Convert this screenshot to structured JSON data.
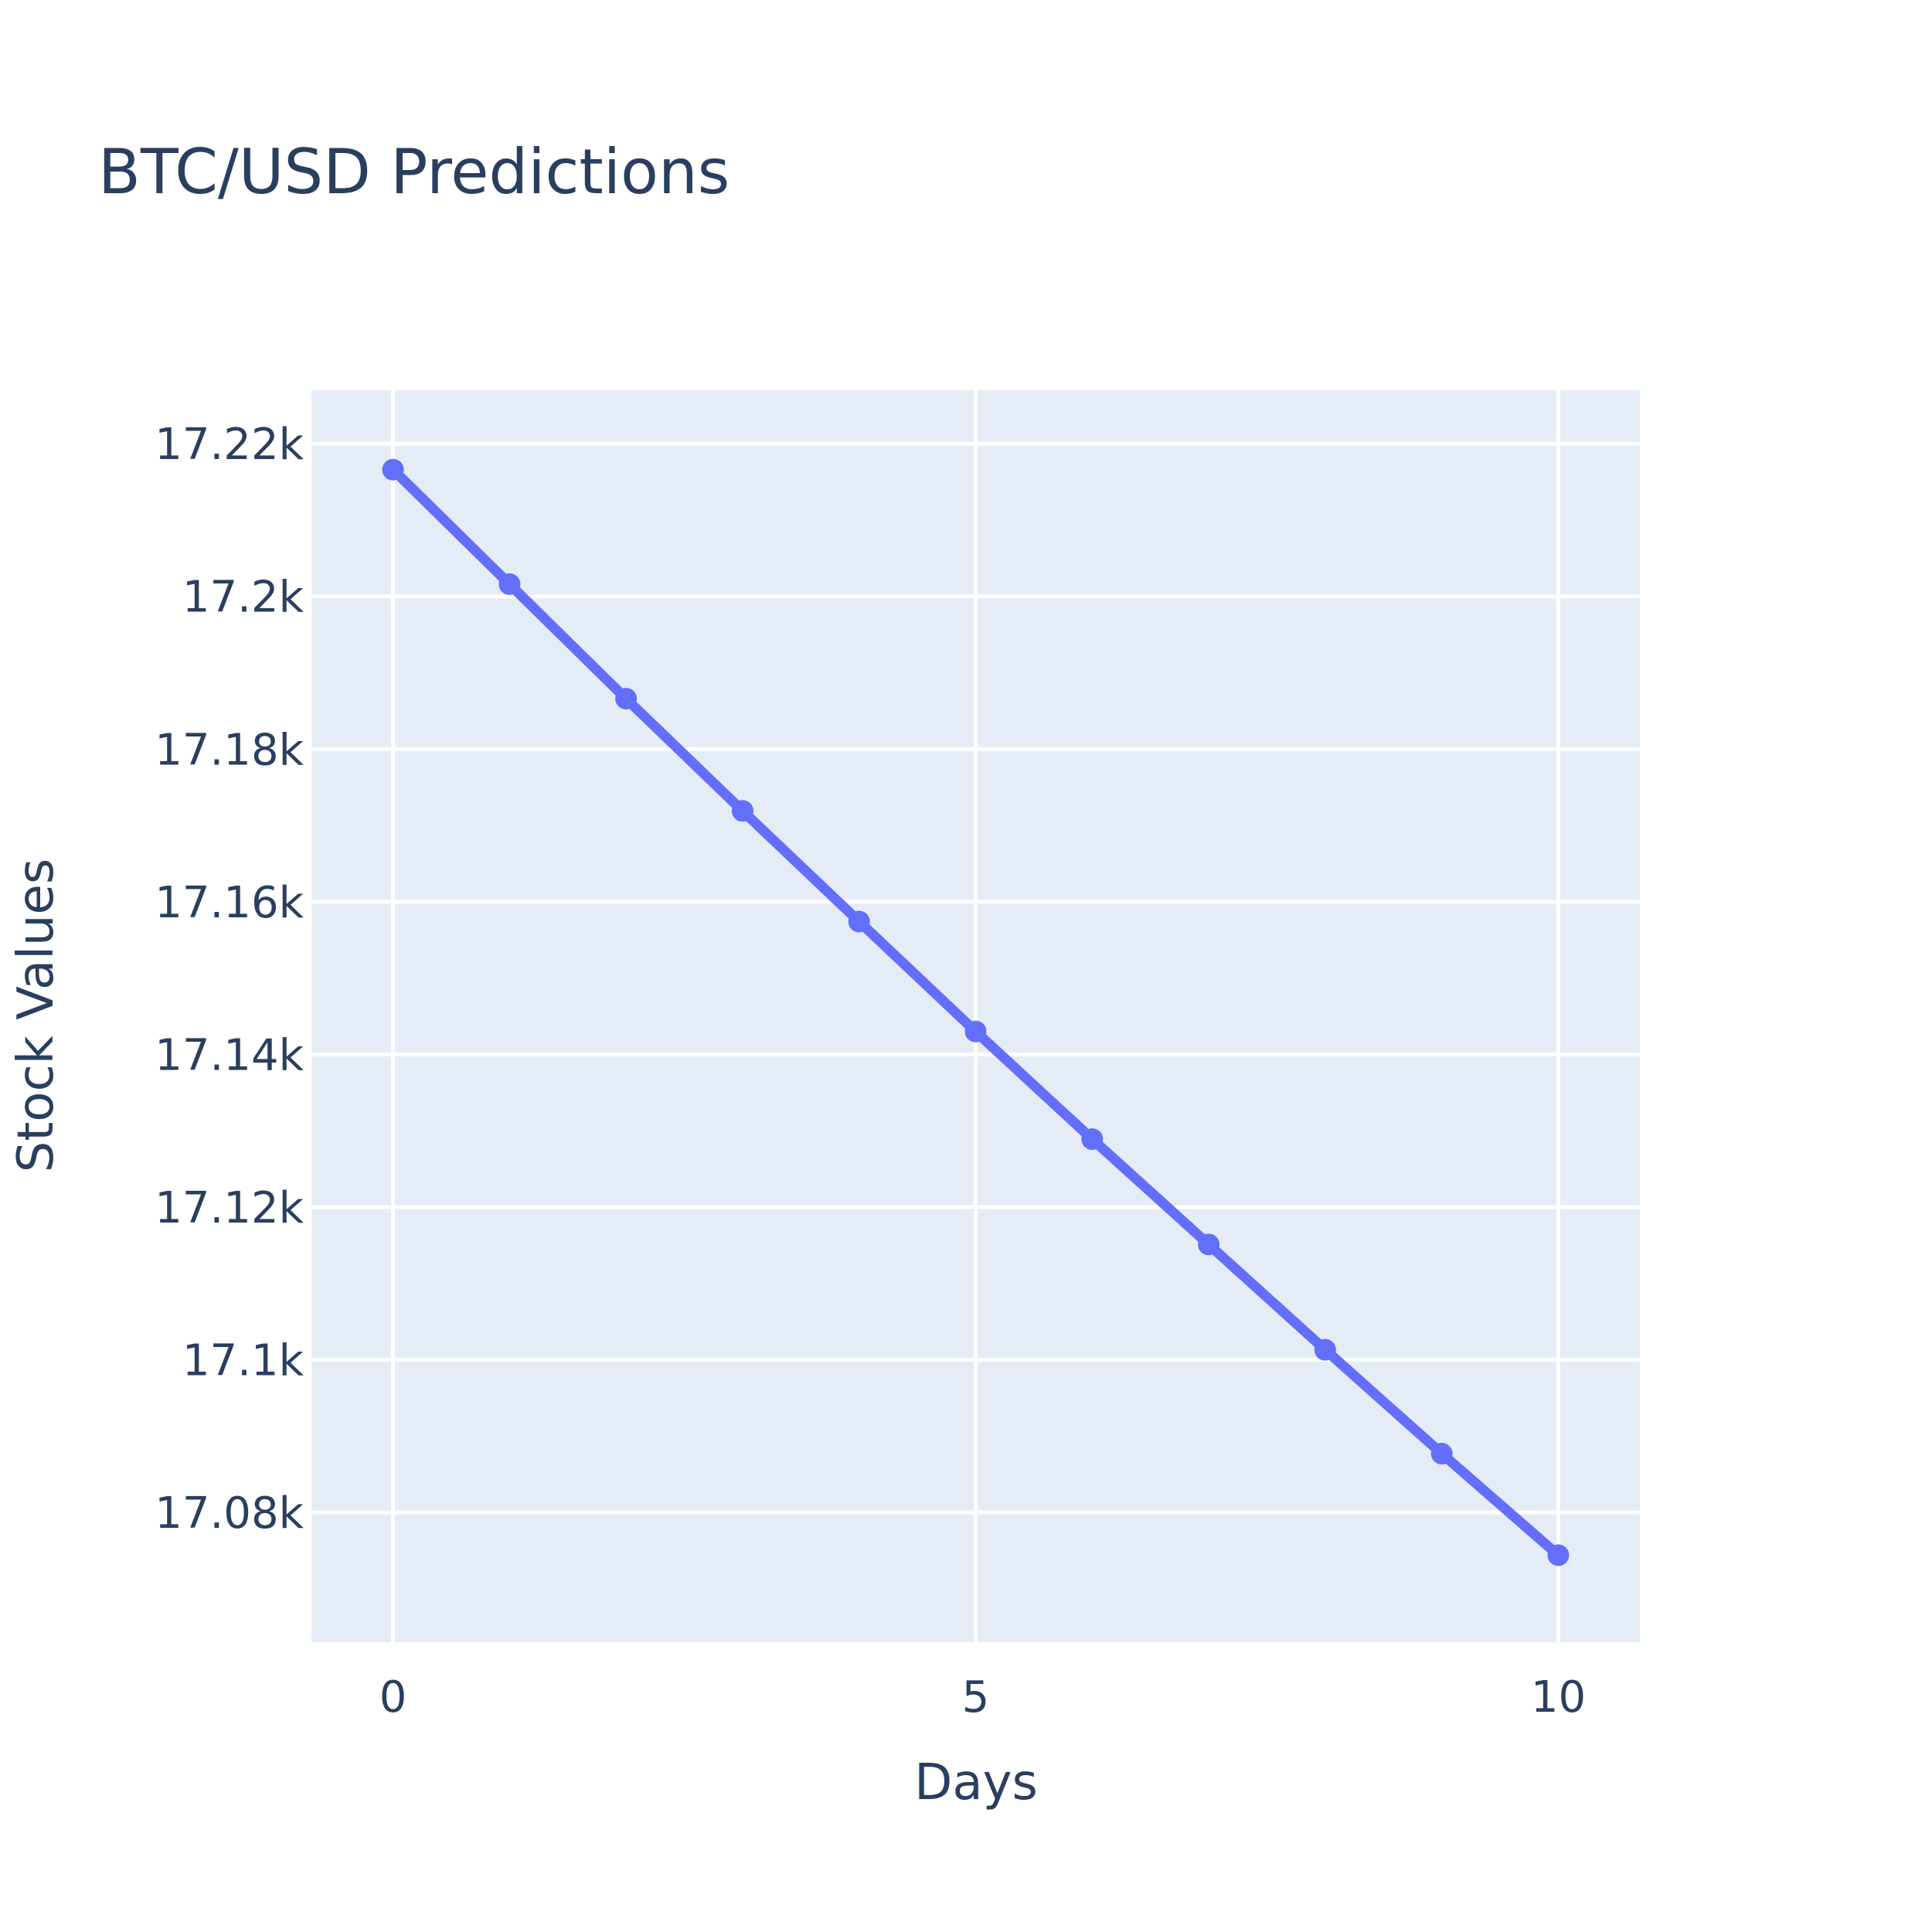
{
  "chart_data": {
    "type": "line",
    "title": "BTC/USD Predictions",
    "xlabel": "Days",
    "ylabel": "Stock Values",
    "x": [
      0,
      1,
      2,
      3,
      4,
      5,
      6,
      7,
      8,
      9,
      10
    ],
    "series": [
      {
        "values": [
          17216.6,
          17201.6,
          17186.6,
          17171.9,
          17157.4,
          17143.0,
          17128.9,
          17115.1,
          17101.3,
          17087.7,
          17074.4
        ]
      }
    ],
    "xlim": [
      -0.7,
      10.7
    ],
    "ylim": [
      17063,
      17227
    ],
    "x_ticks": [
      0,
      5,
      10
    ],
    "x_tick_labels": [
      "0",
      "5",
      "10"
    ],
    "y_ticks": [
      17080,
      17100,
      17120,
      17140,
      17160,
      17180,
      17200,
      17220
    ],
    "y_tick_labels": [
      "17.08k",
      "17.1k",
      "17.12k",
      "17.14k",
      "17.16k",
      "17.18k",
      "17.2k",
      "17.22k"
    ],
    "grid": true,
    "legend": false,
    "line_color": "#636efa",
    "plot_bg": "#e5ecf6"
  }
}
